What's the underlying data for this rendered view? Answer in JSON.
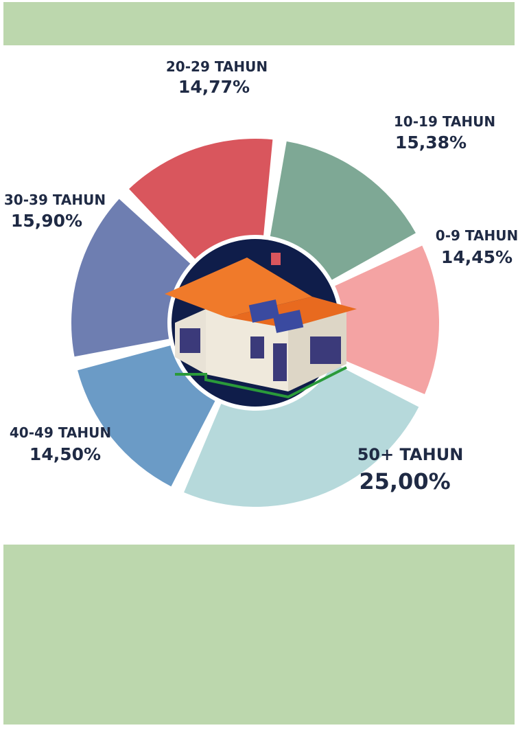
{
  "chart_data": {
    "type": "donut",
    "categories": [
      "0-9 TAHUN",
      "50+ TAHUN",
      "40-49 TAHUN",
      "30-39 TAHUN",
      "20-29 TAHUN",
      "10-19 TAHUN"
    ],
    "values": [
      14.45,
      25.0,
      14.5,
      15.9,
      14.77,
      15.38
    ],
    "value_labels": [
      "14,45%",
      "25,00%",
      "14,50%",
      "15,90%",
      "14,77%",
      "15,38%"
    ],
    "colors": [
      "#f4a3a3",
      "#b6d9db",
      "#6b9bc6",
      "#6e7eb1",
      "#d9565d",
      "#7ea895"
    ]
  }
}
